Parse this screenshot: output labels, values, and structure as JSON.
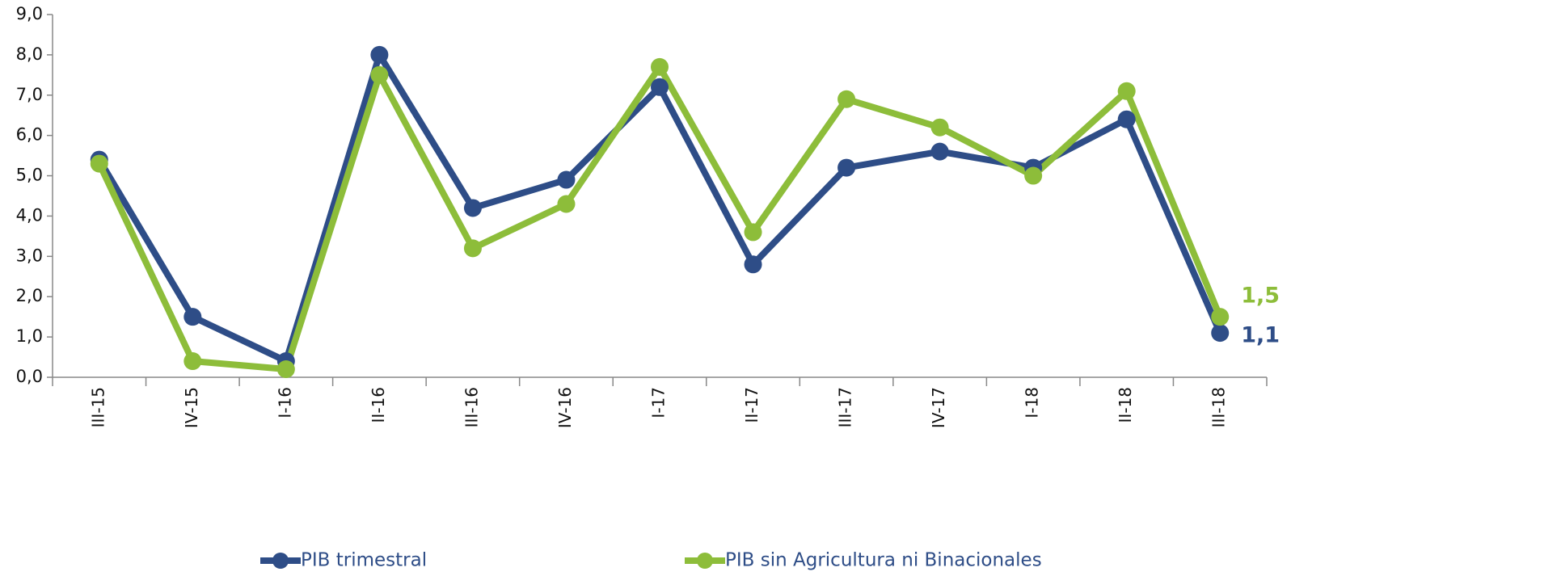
{
  "chart_data": {
    "type": "line",
    "categories": [
      "III-15",
      "IV-15",
      "I-16",
      "II-16",
      "III-16",
      "IV-16",
      "I-17",
      "II-17",
      "III-17",
      "IV-17",
      "I-18",
      "II-18",
      "III-18"
    ],
    "series": [
      {
        "name": "PIB trimestral",
        "color": "#2e4d87",
        "values": [
          5.4,
          1.5,
          0.4,
          8.0,
          4.2,
          4.9,
          7.2,
          2.8,
          5.2,
          5.6,
          5.2,
          6.4,
          1.1
        ],
        "value_labels": [
          null,
          null,
          null,
          null,
          null,
          null,
          null,
          null,
          null,
          null,
          null,
          null,
          "1,1"
        ]
      },
      {
        "name": "PIB sin Agricultura ni Binacionales",
        "color": "#8dbd3a",
        "values": [
          5.3,
          0.4,
          0.2,
          7.5,
          3.2,
          4.3,
          7.7,
          3.6,
          6.9,
          6.2,
          5.0,
          7.1,
          1.5
        ],
        "value_labels": [
          null,
          null,
          null,
          null,
          null,
          null,
          null,
          null,
          null,
          null,
          null,
          null,
          "1,5"
        ]
      }
    ],
    "ylim": [
      0,
      9
    ],
    "yticks": [
      {
        "value": 0,
        "label": "0,0"
      },
      {
        "value": 1,
        "label": "1,0"
      },
      {
        "value": 2,
        "label": "2,0"
      },
      {
        "value": 3,
        "label": "3,0"
      },
      {
        "value": 4,
        "label": "4,0"
      },
      {
        "value": 5,
        "label": "5,0"
      },
      {
        "value": 6,
        "label": "6,0"
      },
      {
        "value": 7,
        "label": "7,0"
      },
      {
        "value": 8,
        "label": "8,0"
      },
      {
        "value": 9,
        "label": "9,0"
      }
    ],
    "grid": false,
    "legend": "bottom"
  }
}
